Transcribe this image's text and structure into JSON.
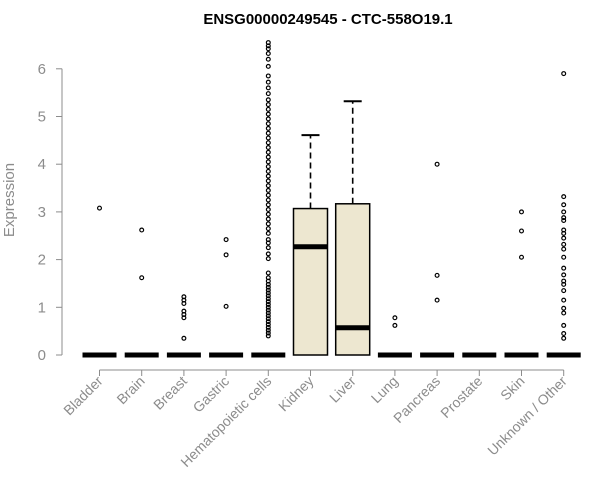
{
  "chart_data": {
    "type": "boxplot",
    "title": "ENSG00000249545 - CTC-558O19.1",
    "xlabel": "",
    "ylabel": "Expression",
    "ylim": [
      0,
      6.6
    ],
    "yticks": [
      0,
      1,
      2,
      3,
      4,
      5,
      6
    ],
    "grid": false,
    "legend": "none",
    "colors": {
      "box_fill": "#ede7d0",
      "stroke": "#000000",
      "axis": "#8c8c8c"
    },
    "categories": [
      "Bladder",
      "Brain",
      "Breast",
      "Gastric",
      "Hematopoietic cells",
      "Kidney",
      "Liver",
      "Lung",
      "Pancreas",
      "Prostate",
      "Skin",
      "Unknown / Other"
    ],
    "boxes": [
      {
        "category": "Bladder",
        "q1": 0,
        "median": 0,
        "q3": 0,
        "whisker_low": 0,
        "whisker_high": 0,
        "outliers": [
          3.08
        ]
      },
      {
        "category": "Brain",
        "q1": 0,
        "median": 0,
        "q3": 0,
        "whisker_low": 0,
        "whisker_high": 0,
        "outliers": [
          2.62,
          1.62
        ]
      },
      {
        "category": "Breast",
        "q1": 0,
        "median": 0,
        "q3": 0,
        "whisker_low": 0,
        "whisker_high": 0,
        "outliers": [
          1.22,
          1.15,
          1.08,
          0.92,
          0.85,
          0.78,
          0.35
        ]
      },
      {
        "category": "Gastric",
        "q1": 0,
        "median": 0,
        "q3": 0,
        "whisker_low": 0,
        "whisker_high": 0,
        "outliers": [
          2.42,
          2.1,
          1.02
        ]
      },
      {
        "category": "Hematopoietic cells",
        "q1": 0,
        "median": 0,
        "q3": 0,
        "whisker_low": 0,
        "whisker_high": 0,
        "outliers": [
          6.55,
          6.48,
          6.42,
          6.32,
          6.2,
          6.05,
          5.85,
          5.72,
          5.6,
          5.48,
          5.35,
          5.25,
          5.15,
          5.05,
          4.95,
          4.85,
          4.75,
          4.65,
          4.55,
          4.45,
          4.35,
          4.25,
          4.15,
          4.05,
          3.95,
          3.85,
          3.75,
          3.65,
          3.55,
          3.45,
          3.35,
          3.25,
          3.15,
          3.05,
          2.95,
          2.85,
          2.75,
          2.65,
          2.55,
          2.42,
          2.35,
          2.25,
          2.12,
          2.02,
          1.72,
          1.62,
          1.55,
          1.48,
          1.42,
          1.36,
          1.3,
          1.24,
          1.18,
          1.12,
          1.06,
          1.0,
          0.94,
          0.88,
          0.82,
          0.76,
          0.7,
          0.64,
          0.58,
          0.52,
          0.46,
          0.4
        ]
      },
      {
        "category": "Kidney",
        "q1": 0,
        "median": 2.27,
        "q3": 3.07,
        "whisker_low": 0,
        "whisker_high": 4.61,
        "outliers": []
      },
      {
        "category": "Liver",
        "q1": 0,
        "median": 0.57,
        "q3": 3.17,
        "whisker_low": 0,
        "whisker_high": 5.32,
        "outliers": []
      },
      {
        "category": "Lung",
        "q1": 0,
        "median": 0,
        "q3": 0,
        "whisker_low": 0,
        "whisker_high": 0,
        "outliers": [
          0.78,
          0.62
        ]
      },
      {
        "category": "Pancreas",
        "q1": 0,
        "median": 0,
        "q3": 0,
        "whisker_low": 0,
        "whisker_high": 0,
        "outliers": [
          4.0,
          1.67,
          1.15
        ]
      },
      {
        "category": "Prostate",
        "q1": 0,
        "median": 0,
        "q3": 0,
        "whisker_low": 0,
        "whisker_high": 0,
        "outliers": []
      },
      {
        "category": "Skin",
        "q1": 0,
        "median": 0,
        "q3": 0,
        "whisker_low": 0,
        "whisker_high": 0,
        "outliers": [
          3.0,
          2.6,
          2.05
        ]
      },
      {
        "category": "Unknown / Other",
        "q1": 0,
        "median": 0,
        "q3": 0,
        "whisker_low": 0,
        "whisker_high": 0,
        "outliers": [
          5.9,
          3.32,
          3.15,
          3.0,
          2.88,
          2.82,
          2.62,
          2.55,
          2.45,
          2.32,
          2.22,
          2.05,
          1.82,
          1.68,
          1.55,
          1.48,
          1.35,
          1.15,
          0.98,
          0.88,
          0.62,
          0.45,
          0.35
        ]
      }
    ]
  }
}
